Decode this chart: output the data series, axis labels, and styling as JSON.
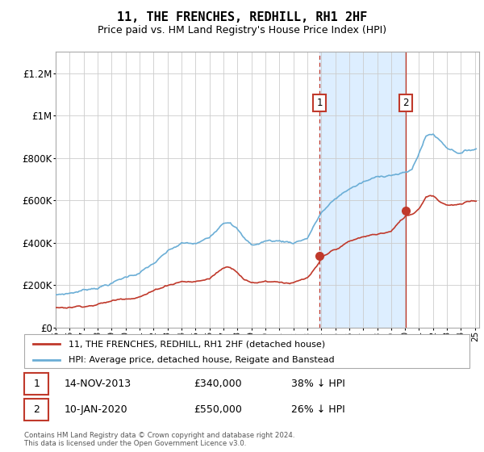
{
  "title": "11, THE FRENCHES, REDHILL, RH1 2HF",
  "subtitle": "Price paid vs. HM Land Registry's House Price Index (HPI)",
  "legend_line1": "11, THE FRENCHES, REDHILL, RH1 2HF (detached house)",
  "legend_line2": "HPI: Average price, detached house, Reigate and Banstead",
  "footnote": "Contains HM Land Registry data © Crown copyright and database right 2024.\nThis data is licensed under the Open Government Licence v3.0.",
  "sale1_date": "14-NOV-2013",
  "sale1_price": "£340,000",
  "sale1_hpi": "38% ↓ HPI",
  "sale2_date": "10-JAN-2020",
  "sale2_price": "£550,000",
  "sale2_hpi": "26% ↓ HPI",
  "sale1_year": 2013.875,
  "sale2_year": 2020.033,
  "sale1_value": 340000,
  "sale2_value": 550000,
  "hpi_color": "#6baed6",
  "price_color": "#c0392b",
  "highlight_color": "#ddeeff",
  "vline1_color": "#c0392b",
  "vline2_color": "#c0392b",
  "marker_box_color": "#c0392b",
  "ylim": [
    0,
    1300000
  ],
  "yticks": [
    0,
    200000,
    400000,
    600000,
    800000,
    1000000,
    1200000
  ],
  "ytick_labels": [
    "£0",
    "£200K",
    "£400K",
    "£600K",
    "£800K",
    "£1M",
    "£1.2M"
  ],
  "xstart": 1995,
  "xend": 2025
}
